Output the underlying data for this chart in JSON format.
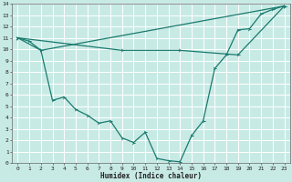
{
  "xlabel": "Humidex (Indice chaleur)",
  "xlim": [
    -0.5,
    23.5
  ],
  "ylim": [
    0,
    14
  ],
  "xticks": [
    0,
    1,
    2,
    3,
    4,
    5,
    6,
    7,
    8,
    9,
    10,
    11,
    12,
    13,
    14,
    15,
    16,
    17,
    18,
    19,
    20,
    21,
    22,
    23
  ],
  "yticks": [
    0,
    1,
    2,
    3,
    4,
    5,
    6,
    7,
    8,
    9,
    10,
    11,
    12,
    13,
    14
  ],
  "bg_color": "#c8eae5",
  "line_color": "#1a7a6e",
  "grid_color": "#ffffff",
  "line1_x": [
    0,
    1,
    2,
    3,
    4,
    5,
    6,
    7,
    8,
    9,
    10,
    11,
    12,
    13,
    14,
    15,
    16,
    17,
    18,
    19,
    20,
    21,
    22,
    23
  ],
  "line1_y": [
    11,
    10.7,
    9.9,
    5.5,
    5.8,
    4.7,
    4.2,
    3.5,
    3.7,
    2.2,
    1.8,
    2.7,
    0.4,
    0.2,
    0.1,
    2.4,
    3.7,
    8.3,
    9.5,
    11.7,
    11.8,
    13.1,
    13.5,
    13.8
  ],
  "line2_x": [
    0,
    2,
    23
  ],
  "line2_y": [
    11,
    9.9,
    13.8
  ],
  "line3_x": [
    0,
    9,
    14,
    19,
    23
  ],
  "line3_y": [
    11,
    9.9,
    9.9,
    9.5,
    13.8
  ]
}
